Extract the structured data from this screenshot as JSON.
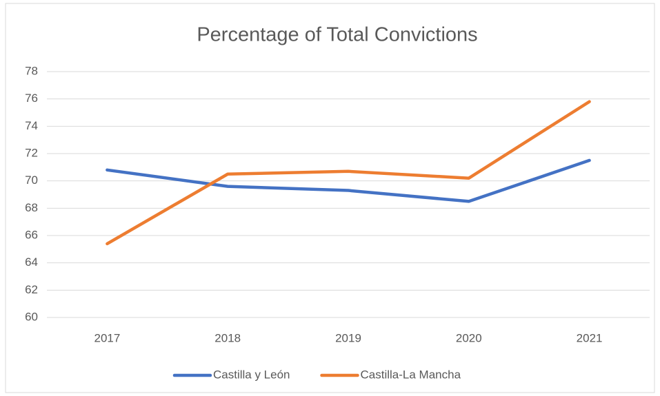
{
  "chart_data": {
    "type": "line",
    "title": "Percentage of Total Convictions",
    "categories": [
      "2017",
      "2018",
      "2019",
      "2020",
      "2021"
    ],
    "series": [
      {
        "name": "Castilla y León",
        "color": "#4472c4",
        "values": [
          70.8,
          69.6,
          69.3,
          68.5,
          71.5
        ]
      },
      {
        "name": "Castilla-La Mancha",
        "color": "#ed7d31",
        "values": [
          65.4,
          70.5,
          70.7,
          70.2,
          75.8
        ]
      }
    ],
    "ylim": [
      60,
      78
    ],
    "yticks": [
      60,
      62,
      64,
      66,
      68,
      70,
      72,
      74,
      76,
      78
    ],
    "grid": true,
    "legend": "bottom"
  }
}
